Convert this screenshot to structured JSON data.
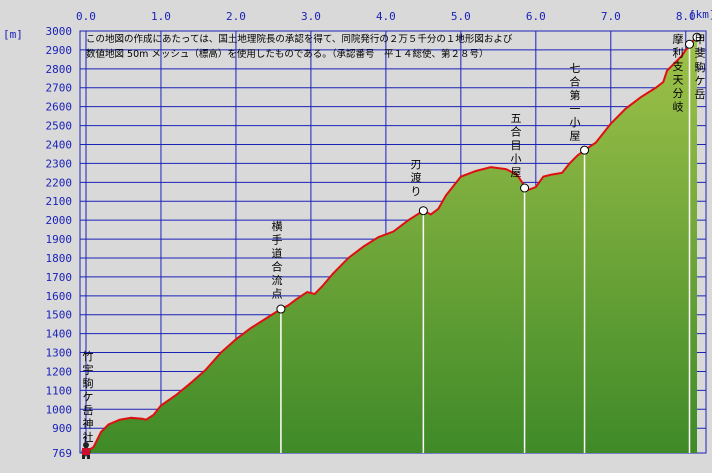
{
  "chart_data": {
    "type": "area",
    "notice": [
      "この地図の作成にあたっては、国土地理院長の承認を得て、同院発行の２万５千分の１地形図および",
      "数値地図 50m メッシュ（標高）を使用したものである。（承認番号　平１４総使、第２８号）"
    ],
    "xunit": "[km]",
    "yunit": "[m]",
    "xticks": [
      "0.0",
      "1.0",
      "2.0",
      "3.0",
      "4.0",
      "5.0",
      "6.0",
      "7.0",
      "8.0"
    ],
    "yticks": [
      "3000",
      "2900",
      "2800",
      "2700",
      "2600",
      "2500",
      "2400",
      "2300",
      "2200",
      "2100",
      "2000",
      "1900",
      "1800",
      "1700",
      "1600",
      "1500",
      "1400",
      "1300",
      "1200",
      "1100",
      "1000",
      "900",
      "769"
    ],
    "xlim": [
      -0.08,
      8.27
    ],
    "ylim": [
      769,
      3000
    ],
    "colors": {
      "grid": "#1a22b8",
      "line": "#e01010",
      "fill_top": "#a0c24a",
      "fill_bottom": "#3f8a28",
      "background": "#d9d9d9"
    },
    "profile": {
      "x": [
        0,
        0.1,
        0.2,
        0.3,
        0.45,
        0.6,
        0.75,
        0.8,
        0.9,
        1.0,
        1.2,
        1.4,
        1.6,
        1.8,
        2.0,
        2.2,
        2.4,
        2.6,
        2.7,
        2.8,
        2.95,
        3.05,
        3.15,
        3.3,
        3.5,
        3.7,
        3.9,
        4.1,
        4.3,
        4.5,
        4.6,
        4.7,
        4.8,
        5.0,
        5.2,
        5.4,
        5.6,
        5.75,
        5.85,
        5.9,
        6.0,
        6.1,
        6.2,
        6.35,
        6.45,
        6.55,
        6.65,
        6.8,
        7.0,
        7.2,
        7.4,
        7.6,
        7.7,
        7.75,
        7.85,
        7.95,
        8.0,
        8.05,
        8.1,
        8.15
      ],
      "y": [
        775,
        800,
        880,
        920,
        945,
        955,
        950,
        945,
        970,
        1020,
        1075,
        1140,
        1210,
        1300,
        1370,
        1430,
        1480,
        1530,
        1550,
        1580,
        1620,
        1610,
        1650,
        1720,
        1800,
        1860,
        1910,
        1940,
        2000,
        2050,
        2030,
        2060,
        2130,
        2230,
        2260,
        2280,
        2270,
        2240,
        2180,
        2160,
        2175,
        2230,
        2240,
        2250,
        2300,
        2340,
        2370,
        2410,
        2510,
        2590,
        2650,
        2700,
        2730,
        2790,
        2830,
        2870,
        2900,
        2920,
        2950,
        2970
      ]
    },
    "annotations": [
      {
        "label": "竹宇駒ケ岳神社",
        "x": 0.0,
        "y": 775
      },
      {
        "label": "横手道合流点",
        "x": 2.6,
        "y": 1530
      },
      {
        "label": "刃渡り",
        "x": 4.5,
        "y": 2050
      },
      {
        "label": "五合目小屋",
        "x": 5.85,
        "y": 2170
      },
      {
        "label": "七合第一小屋",
        "x": 6.65,
        "y": 2370
      },
      {
        "label": "駒ケ岳",
        "x": 8.15,
        "y": 2967
      },
      {
        "label": "甲斐",
        "x": 8.15,
        "y": 2967
      },
      {
        "label": "摩利支天分岐",
        "x": 8.05,
        "y": 2930
      }
    ]
  }
}
